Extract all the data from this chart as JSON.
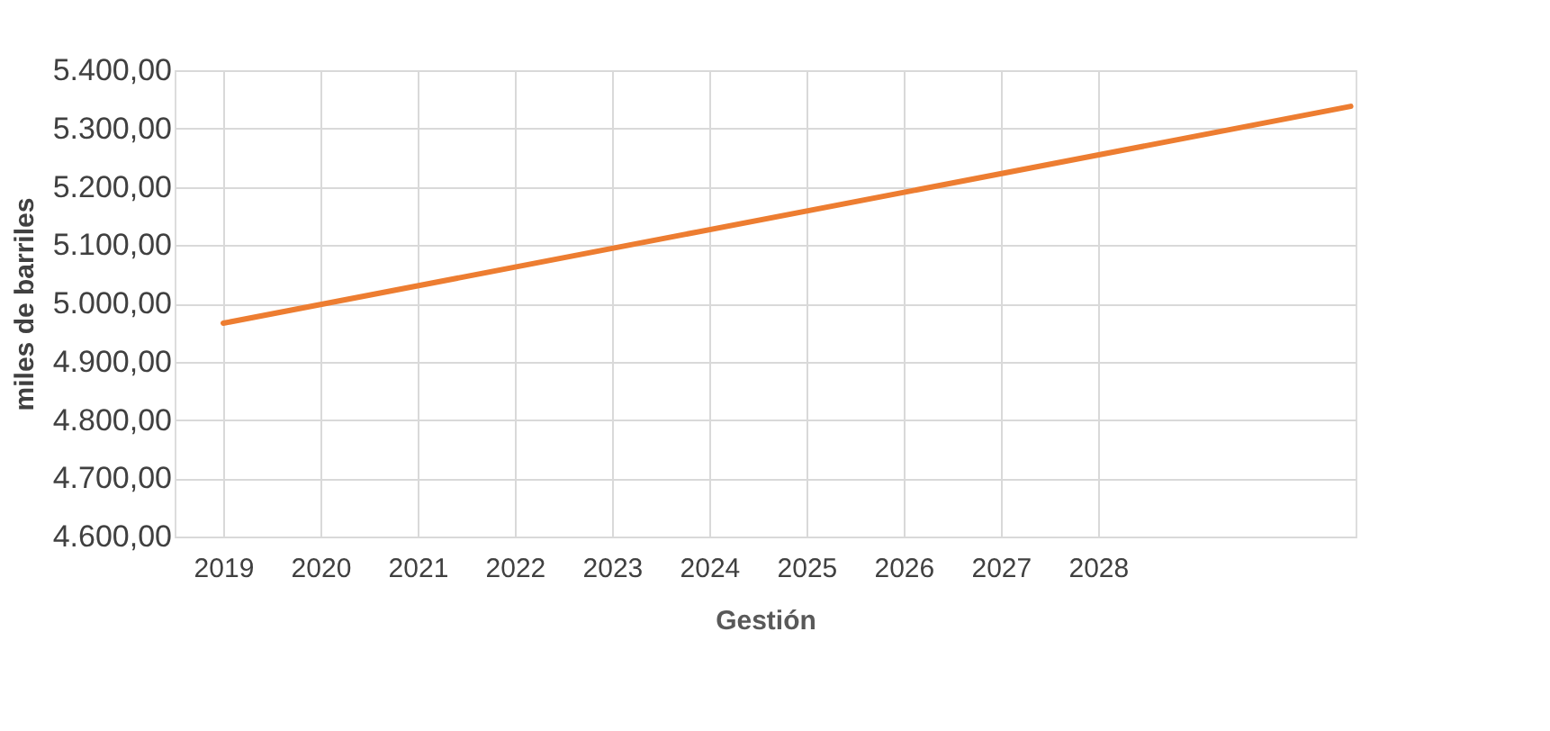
{
  "chart_data": {
    "type": "line",
    "xlabel": "Gestión",
    "ylabel": "miles de barriles",
    "x": [
      2019,
      2030.6
    ],
    "series": [
      {
        "color": "#ed7d31",
        "values": [
          4966,
          5338
        ]
      }
    ],
    "xlim": [
      2018.5,
      2030.65
    ],
    "xticks": [
      2019,
      2020,
      2021,
      2022,
      2023,
      2024,
      2025,
      2026,
      2027,
      2028
    ],
    "ylim": [
      4600,
      5400
    ],
    "yticks": [
      {
        "value": 4600,
        "label": "4.600,00"
      },
      {
        "value": 4700,
        "label": "4.700,00"
      },
      {
        "value": 4800,
        "label": "4.800,00"
      },
      {
        "value": 4900,
        "label": "4.900,00"
      },
      {
        "value": 5000,
        "label": "5.000,00"
      },
      {
        "value": 5100,
        "label": "5.100,00"
      },
      {
        "value": 5200,
        "label": "5.200,00"
      },
      {
        "value": 5300,
        "label": "5.300,00"
      },
      {
        "value": 5400,
        "label": "5.400,00"
      }
    ],
    "grid": true,
    "marker": "none",
    "line_style": "solid"
  }
}
